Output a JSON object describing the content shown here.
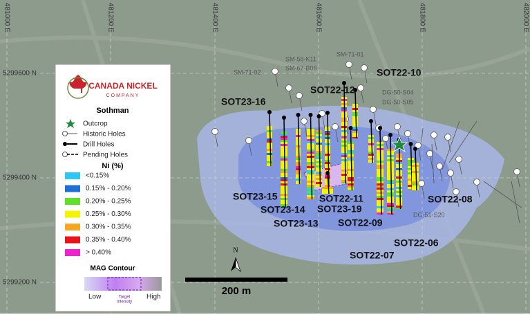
{
  "grid": {
    "eastings": [
      "481000 E",
      "481200 E",
      "481400 E",
      "481600 E",
      "481800 E",
      "482000 E"
    ],
    "northings": [
      "5299600 N",
      "5299400 N",
      "5299200 N"
    ]
  },
  "legend": {
    "company": [
      "CANADA NICKEL",
      "COMPANY"
    ],
    "project": "Sothman",
    "symbols": [
      "Outcrop",
      "Historic Holes",
      "Drill Holes",
      "Pending Holes"
    ],
    "ni_title": "Ni (%)",
    "ni_classes": [
      {
        "label": "<0.15%",
        "color": "#2ec7f5"
      },
      {
        "label": "0.15% - 0.20%",
        "color": "#1f6fd6"
      },
      {
        "label": "0.20% - 0.25%",
        "color": "#5fe02b"
      },
      {
        "label": "0.25% - 0.30%",
        "color": "#f4f400"
      },
      {
        "label": "0.30% - 0.35%",
        "color": "#f5a623"
      },
      {
        "label": "0.35% - 0.40%",
        "color": "#e8141c"
      },
      {
        "label": "> 0.40%",
        "color": "#ee22cc"
      }
    ],
    "mag_title": "MAG Contour",
    "mag_low": "Low",
    "mag_target": [
      "Target",
      "Intensity"
    ],
    "mag_high": "High"
  },
  "drill_holes": [
    "SOT23-16",
    "SOT22-12",
    "SOT22-10",
    "SOT23-15",
    "SOT23-14",
    "SOT23-13",
    "SOT23-19",
    "SOT22-11",
    "SOT22-09",
    "SOT22-07",
    "SOT22-06",
    "SOT22-08"
  ],
  "historic_holes": [
    "SM-71-02",
    "SM-56-K11",
    "SM-67-B06",
    "SM-71-01",
    "DG-50-S04",
    "DG-50-S05",
    "DG-51-S20"
  ],
  "scale_bar": "200 m",
  "north": "N"
}
